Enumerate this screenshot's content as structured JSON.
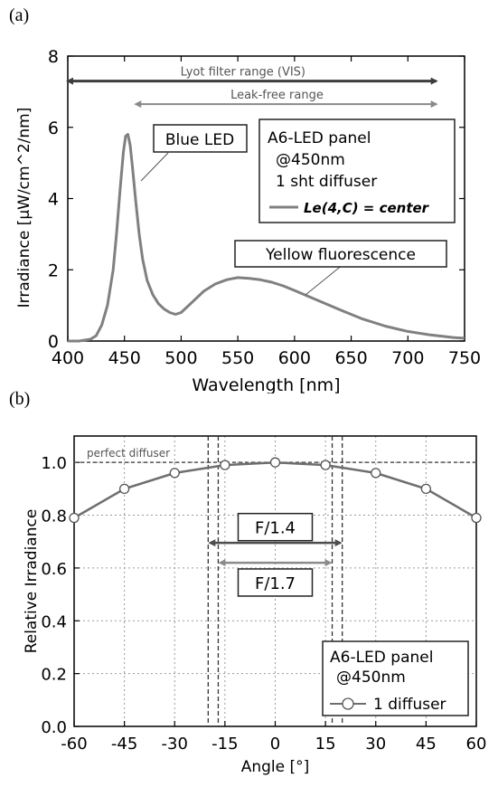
{
  "panels": {
    "a": "(a)",
    "b": "(b)"
  },
  "chart_data": [
    {
      "type": "line",
      "panel": "(a)",
      "xlabel": "Wavelength [nm]",
      "ylabel": "Irradiance [µW/cm^2/nm]",
      "xlim": [
        400,
        750
      ],
      "ylim": [
        0,
        8
      ],
      "xticks": [
        400,
        450,
        500,
        550,
        600,
        650,
        700,
        750
      ],
      "yticks": [
        0,
        2,
        4,
        6,
        8
      ],
      "grid": false,
      "series": [
        {
          "name": "Le(4,C) = center",
          "x": [
            400,
            410,
            420,
            425,
            430,
            435,
            440,
            443,
            446,
            449,
            451,
            453,
            455,
            457,
            460,
            463,
            466,
            470,
            475,
            480,
            485,
            490,
            495,
            500,
            510,
            520,
            530,
            540,
            550,
            560,
            570,
            580,
            590,
            600,
            620,
            640,
            660,
            680,
            700,
            720,
            740,
            750
          ],
          "y": [
            0.0,
            0.0,
            0.05,
            0.15,
            0.45,
            1.0,
            2.0,
            3.0,
            4.2,
            5.3,
            5.75,
            5.8,
            5.5,
            4.9,
            3.9,
            3.0,
            2.3,
            1.7,
            1.3,
            1.05,
            0.9,
            0.8,
            0.75,
            0.8,
            1.1,
            1.4,
            1.6,
            1.72,
            1.78,
            1.76,
            1.72,
            1.65,
            1.55,
            1.42,
            1.15,
            0.88,
            0.62,
            0.42,
            0.27,
            0.17,
            0.1,
            0.08
          ]
        }
      ],
      "ranges": [
        {
          "label": "Lyot filter range (VIS)",
          "from": 400,
          "to": 725,
          "y": 7.3
        },
        {
          "label": "Leak-free range",
          "from": 460,
          "to": 725,
          "y": 6.65
        }
      ],
      "annotations": {
        "blue_led": "Blue LED",
        "yellow": "Yellow fluorescence"
      },
      "legend": {
        "position": "top-right",
        "lines": [
          "A6-LED panel",
          "@450nm",
          "1 sht diffuser"
        ],
        "series_label": "Le(4,C) = center"
      },
      "colors": {
        "series": "#808080",
        "range1": "#3d3d3d",
        "range2": "#8a8a8a"
      }
    },
    {
      "type": "line",
      "panel": "(b)",
      "xlabel": "Angle [°]",
      "ylabel": "Relative Irradiance",
      "xlim": [
        -60,
        60
      ],
      "ylim": [
        0.0,
        1.1
      ],
      "xticks": [
        -60,
        -45,
        -30,
        -15,
        0,
        15,
        30,
        45,
        60
      ],
      "yticks": [
        0.0,
        0.2,
        0.4,
        0.6,
        0.8,
        1.0
      ],
      "grid": true,
      "series": [
        {
          "name": "1 diffuser",
          "x": [
            -60,
            -45,
            -30,
            -15,
            0,
            15,
            30,
            45,
            60
          ],
          "y": [
            0.79,
            0.9,
            0.96,
            0.99,
            1.0,
            0.99,
            0.96,
            0.9,
            0.79
          ]
        }
      ],
      "reference": {
        "label": "perfect diffuser",
        "y": 1.0
      },
      "vlines": [
        -20,
        -17,
        17,
        20
      ],
      "apertures": [
        {
          "label": "F/1.4",
          "from": -20,
          "to": 20,
          "y": 0.695
        },
        {
          "label": "F/1.7",
          "from": -17,
          "to": 17,
          "y": 0.62
        }
      ],
      "legend": {
        "position": "bottom-right",
        "lines": [
          "A6-LED panel",
          "@450nm"
        ],
        "series_label": "1 diffuser"
      },
      "colors": {
        "series": "#6e6e6e",
        "aperture1": "#4d4d4d",
        "aperture2": "#8a8a8a"
      }
    }
  ]
}
